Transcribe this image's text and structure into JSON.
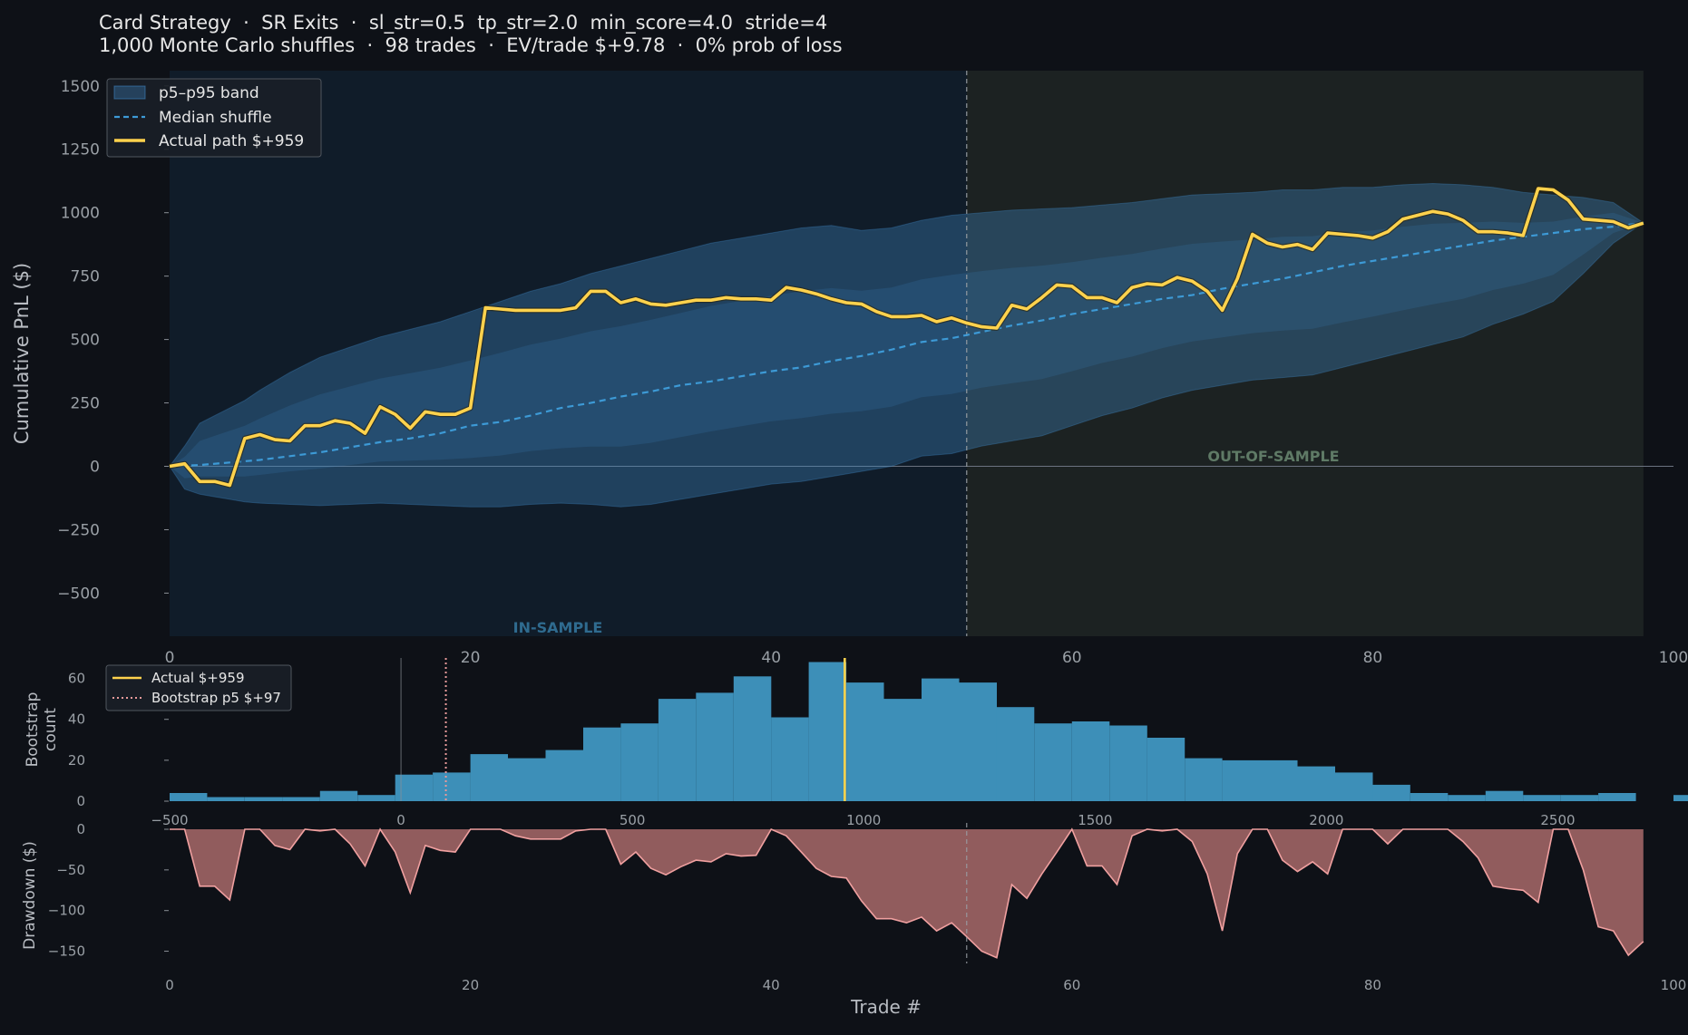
{
  "header": {
    "title": "Card Strategy  ·  SR Exits  ·  sl_str=0.5  tp_str=2.0  min_score=4.0  stride=4",
    "subtitle": "1,000 Monte Carlo shuffles  ·  98 trades  ·  EV/trade $+9.78  ·  0% prob of loss"
  },
  "colors": {
    "background": "#0e1117",
    "band": "#3f86c4",
    "median": "#3d9ad6",
    "actual": "#ffd24d",
    "in_sample_shade": "#15324a",
    "out_sample_shade": "#28322c",
    "histogram": "#3d8fb8",
    "bootstrap_p5": "#e89a9a",
    "drawdown_fill": "#a86a6a",
    "drawdown_line": "#f0a0a0"
  },
  "chart_data": [
    {
      "type": "line",
      "ylabel": "Cumulative PnL ($)",
      "xlim": [
        0,
        100
      ],
      "ylim": [
        -670,
        1560
      ],
      "xticks": [
        0,
        20,
        40,
        60,
        80,
        100
      ],
      "yticks": [
        -500,
        -250,
        0,
        250,
        500,
        750,
        1000,
        1250,
        1500
      ],
      "split_at": 53,
      "in_sample_label": "IN-SAMPLE",
      "out_sample_label": "OUT-OF-SAMPLE",
      "legend": {
        "placement": "top-left",
        "band": "p5–p95 band",
        "median": "Median shuffle",
        "actual": "Actual path  $+959"
      },
      "band": {
        "x": [
          0,
          1,
          2,
          3,
          4,
          5,
          6,
          8,
          10,
          12,
          14,
          16,
          18,
          20,
          22,
          24,
          26,
          28,
          30,
          32,
          34,
          36,
          38,
          40,
          42,
          44,
          46,
          48,
          50,
          52,
          54,
          56,
          58,
          60,
          62,
          64,
          66,
          68,
          70,
          72,
          74,
          76,
          78,
          80,
          82,
          84,
          86,
          88,
          90,
          92,
          94,
          96,
          98
        ],
        "p95": [
          0,
          80,
          170,
          200,
          230,
          260,
          300,
          370,
          430,
          470,
          510,
          540,
          570,
          610,
          650,
          690,
          720,
          760,
          790,
          820,
          850,
          880,
          900,
          920,
          940,
          950,
          930,
          940,
          970,
          990,
          1000,
          1010,
          1015,
          1020,
          1030,
          1040,
          1055,
          1070,
          1075,
          1080,
          1090,
          1090,
          1100,
          1100,
          1110,
          1115,
          1110,
          1100,
          1080,
          1070,
          1060,
          1040,
          960
        ],
        "p5": [
          0,
          -90,
          -110,
          -120,
          -130,
          -140,
          -145,
          -150,
          -155,
          -150,
          -145,
          -150,
          -155,
          -160,
          -160,
          -150,
          -145,
          -150,
          -160,
          -150,
          -130,
          -110,
          -90,
          -70,
          -60,
          -40,
          -20,
          0,
          40,
          50,
          80,
          100,
          120,
          160,
          200,
          230,
          270,
          300,
          320,
          340,
          350,
          360,
          390,
          420,
          450,
          480,
          510,
          560,
          600,
          650,
          760,
          880,
          960
        ]
      },
      "median": {
        "x": [
          0,
          2,
          4,
          6,
          8,
          10,
          12,
          14,
          16,
          18,
          20,
          22,
          24,
          26,
          28,
          30,
          32,
          34,
          36,
          38,
          40,
          42,
          44,
          46,
          48,
          50,
          52,
          54,
          56,
          58,
          60,
          62,
          64,
          66,
          68,
          70,
          72,
          74,
          76,
          78,
          80,
          82,
          84,
          86,
          88,
          90,
          92,
          94,
          96,
          98
        ],
        "y": [
          0,
          5,
          15,
          25,
          40,
          55,
          75,
          95,
          110,
          130,
          160,
          175,
          200,
          230,
          250,
          275,
          295,
          320,
          335,
          355,
          375,
          390,
          415,
          435,
          460,
          490,
          505,
          530,
          555,
          575,
          600,
          620,
          640,
          660,
          675,
          700,
          720,
          740,
          765,
          790,
          810,
          830,
          850,
          870,
          890,
          905,
          920,
          935,
          945,
          960
        ]
      },
      "actual": {
        "x": [
          0,
          1,
          2,
          3,
          4,
          5,
          6,
          7,
          8,
          9,
          10,
          11,
          12,
          13,
          14,
          15,
          16,
          17,
          18,
          19,
          20,
          21,
          22,
          23,
          24,
          25,
          26,
          27,
          28,
          29,
          30,
          31,
          32,
          33,
          34,
          35,
          36,
          37,
          38,
          39,
          40,
          41,
          42,
          43,
          44,
          45,
          46,
          47,
          48,
          49,
          50,
          51,
          52,
          53,
          54,
          55,
          56,
          57,
          58,
          59,
          60,
          61,
          62,
          63,
          64,
          65,
          66,
          67,
          68,
          69,
          70,
          71,
          72,
          73,
          74,
          75,
          76,
          77,
          78,
          79,
          80,
          81,
          82,
          83,
          84,
          85,
          86,
          87,
          88,
          89,
          90,
          91,
          92,
          93,
          94,
          95,
          96,
          97,
          98
        ],
        "y": [
          0,
          10,
          -60,
          -60,
          -75,
          110,
          125,
          105,
          100,
          160,
          160,
          180,
          170,
          130,
          235,
          205,
          150,
          215,
          205,
          205,
          230,
          625,
          620,
          615,
          615,
          615,
          615,
          625,
          690,
          690,
          645,
          660,
          640,
          635,
          645,
          655,
          655,
          665,
          660,
          660,
          655,
          705,
          695,
          680,
          660,
          645,
          640,
          610,
          590,
          590,
          595,
          570,
          585,
          565,
          550,
          545,
          635,
          620,
          665,
          715,
          710,
          665,
          665,
          645,
          705,
          720,
          715,
          745,
          730,
          690,
          615,
          740,
          915,
          880,
          865,
          875,
          855,
          920,
          915,
          910,
          900,
          925,
          975,
          990,
          1005,
          995,
          970,
          925,
          925,
          920,
          910,
          1095,
          1090,
          1050,
          975,
          970,
          965,
          940,
          959
        ]
      }
    },
    {
      "type": "bar",
      "ylabel": "Bootstrap\ncount",
      "xlim": [
        -500,
        2750
      ],
      "ylim": [
        0,
        70
      ],
      "xticks": [
        -500,
        0,
        500,
        1000,
        1500,
        2000,
        2500
      ],
      "yticks": [
        0,
        20,
        40,
        60
      ],
      "bin_width": 81.25,
      "bin_start": -500,
      "counts": [
        4,
        2,
        2,
        2,
        5,
        3,
        13,
        14,
        23,
        21,
        25,
        36,
        38,
        50,
        53,
        61,
        41,
        68,
        58,
        50,
        60,
        58,
        46,
        38,
        39,
        37,
        31,
        21,
        20,
        20,
        17,
        14,
        8,
        4,
        3,
        5,
        3,
        3,
        4,
        0,
        3
      ],
      "zero_line": 0,
      "actual_value": 959,
      "p5_value": 97,
      "legend": {
        "placement": "top-left",
        "actual": "Actual $+959",
        "p5": "Bootstrap p5 $+97"
      }
    },
    {
      "type": "area",
      "ylabel": "Drawdown ($)",
      "xlabel": "Trade #",
      "xlim": [
        0,
        100
      ],
      "ylim": [
        -165,
        0
      ],
      "xticks": [
        0,
        20,
        40,
        60,
        80,
        100
      ],
      "yticks": [
        0,
        -50,
        -100,
        -150
      ],
      "split_at": 53,
      "x": [
        0,
        1,
        2,
        3,
        4,
        5,
        6,
        7,
        8,
        9,
        10,
        11,
        12,
        13,
        14,
        15,
        16,
        17,
        18,
        19,
        20,
        21,
        22,
        23,
        24,
        25,
        26,
        27,
        28,
        29,
        30,
        31,
        32,
        33,
        34,
        35,
        36,
        37,
        38,
        39,
        40,
        41,
        42,
        43,
        44,
        45,
        46,
        47,
        48,
        49,
        50,
        51,
        52,
        53,
        54,
        55,
        56,
        57,
        58,
        59,
        60,
        61,
        62,
        63,
        64,
        65,
        66,
        67,
        68,
        69,
        70,
        71,
        72,
        73,
        74,
        75,
        76,
        77,
        78,
        79,
        80,
        81,
        82,
        83,
        84,
        85,
        86,
        87,
        88,
        89,
        90,
        91,
        92,
        93,
        94,
        95,
        96,
        97,
        98
      ],
      "y": [
        0,
        0,
        -70,
        -70,
        -87,
        0,
        0,
        -20,
        -25,
        0,
        -2,
        0,
        -18,
        -45,
        0,
        -28,
        -78,
        -20,
        -26,
        -28,
        0,
        0,
        0,
        -8,
        -12,
        -12,
        -12,
        -2,
        0,
        0,
        -43,
        -28,
        -48,
        -56,
        -46,
        -38,
        -40,
        -30,
        -33,
        -32,
        0,
        -8,
        -28,
        -48,
        -58,
        -60,
        -88,
        -110,
        -110,
        -115,
        -108,
        -125,
        -115,
        -132,
        -150,
        -158,
        -68,
        -85,
        -55,
        -28,
        0,
        -45,
        -45,
        -68,
        -8,
        0,
        -2,
        0,
        -15,
        -55,
        -125,
        -30,
        0,
        0,
        -38,
        -52,
        -40,
        -55,
        0,
        0,
        0,
        -18,
        0,
        0,
        0,
        0,
        -15,
        -35,
        -70,
        -73,
        -75,
        -90,
        0,
        0,
        -50,
        -120,
        -125,
        -155,
        -138
      ]
    }
  ]
}
